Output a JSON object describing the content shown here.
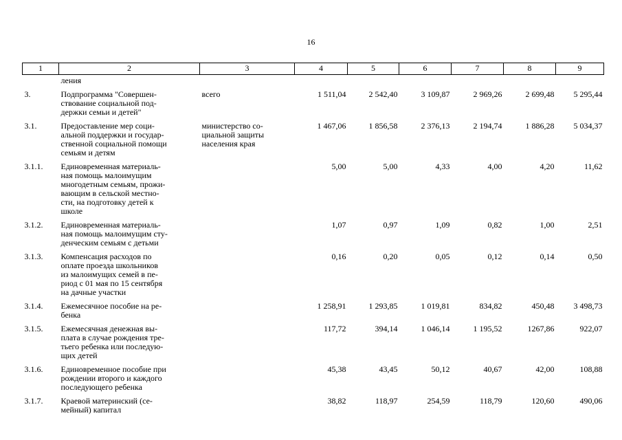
{
  "page": {
    "number": "16"
  },
  "table": {
    "column_numbers": [
      "1",
      "2",
      "3",
      "4",
      "5",
      "6",
      "7",
      "8",
      "9"
    ],
    "rows": [
      {
        "num": "",
        "name": "ления",
        "executor": "",
        "values": [
          "",
          "",
          "",
          "",
          "",
          ""
        ]
      },
      {
        "num": "3.",
        "name": "Подпрограмма \"Совершен-\nствование социальной под-\nдержки семьи и детей\"",
        "executor": "всего",
        "values": [
          "1 511,04",
          "2 542,40",
          "3 109,87",
          "2 969,26",
          "2 699,48",
          "5 295,44"
        ]
      },
      {
        "num": "3.1.",
        "name": "Предоставление мер соци-\nальной поддержки и государ-\nственной социальной помощи\nсемьям и детям",
        "executor": "министерство со-\nциальной защиты\nнаселения края",
        "values": [
          "1 467,06",
          "1 856,58",
          "2 376,13",
          "2 194,74",
          "1 886,28",
          "5 034,37"
        ]
      },
      {
        "num": "3.1.1.",
        "name": "Единовременная материаль-\nная помощь малоимущим\nмногодетным семьям, прожи-\nвающим в сельской местно-\nсти, на подготовку детей к\nшколе",
        "executor": "",
        "values": [
          "5,00",
          "5,00",
          "4,33",
          "4,00",
          "4,20",
          "11,62"
        ]
      },
      {
        "num": "3.1.2.",
        "name": "Единовременная материаль-\nная помощь малоимущим сту-\nденческим семьям с детьми",
        "executor": "",
        "values": [
          "1,07",
          "0,97",
          "1,09",
          "0,82",
          "1,00",
          "2,51"
        ]
      },
      {
        "num": "3.1.3.",
        "name": "Компенсация расходов по\nоплате проезда школьников\nиз малоимущих семей в пе-\nриод с 01 мая по 15 сентября\nна дачные участки",
        "executor": "",
        "values": [
          "0,16",
          "0,20",
          "0,05",
          "0,12",
          "0,14",
          "0,50"
        ]
      },
      {
        "num": "3.1.4.",
        "name": "Ежемесячное пособие на ре-\nбенка",
        "executor": "",
        "values": [
          "1 258,91",
          "1 293,85",
          "1 019,81",
          "834,82",
          "450,48",
          "3 498,73"
        ]
      },
      {
        "num": "3.1.5.",
        "name": "Ежемесячная денежная вы-\nплата в случае рождения тре-\nтьего ребенка или последую-\nщих детей",
        "executor": "",
        "values": [
          "117,72",
          "394,14",
          "1 046,14",
          "1 195,52",
          "1267,86",
          "922,07"
        ]
      },
      {
        "num": "3.1.6.",
        "name": "Единовременное пособие при\nрождении второго и каждого\nпоследующего ребенка",
        "executor": "",
        "values": [
          "45,38",
          "43,45",
          "50,12",
          "40,67",
          "42,00",
          "108,88"
        ]
      },
      {
        "num": "3.1.7.",
        "name": "Краевой материнский (се-\nмейный) капитал",
        "executor": "",
        "values": [
          "38,82",
          "118,97",
          "254,59",
          "118,79",
          "120,60",
          "490,06"
        ]
      }
    ]
  }
}
